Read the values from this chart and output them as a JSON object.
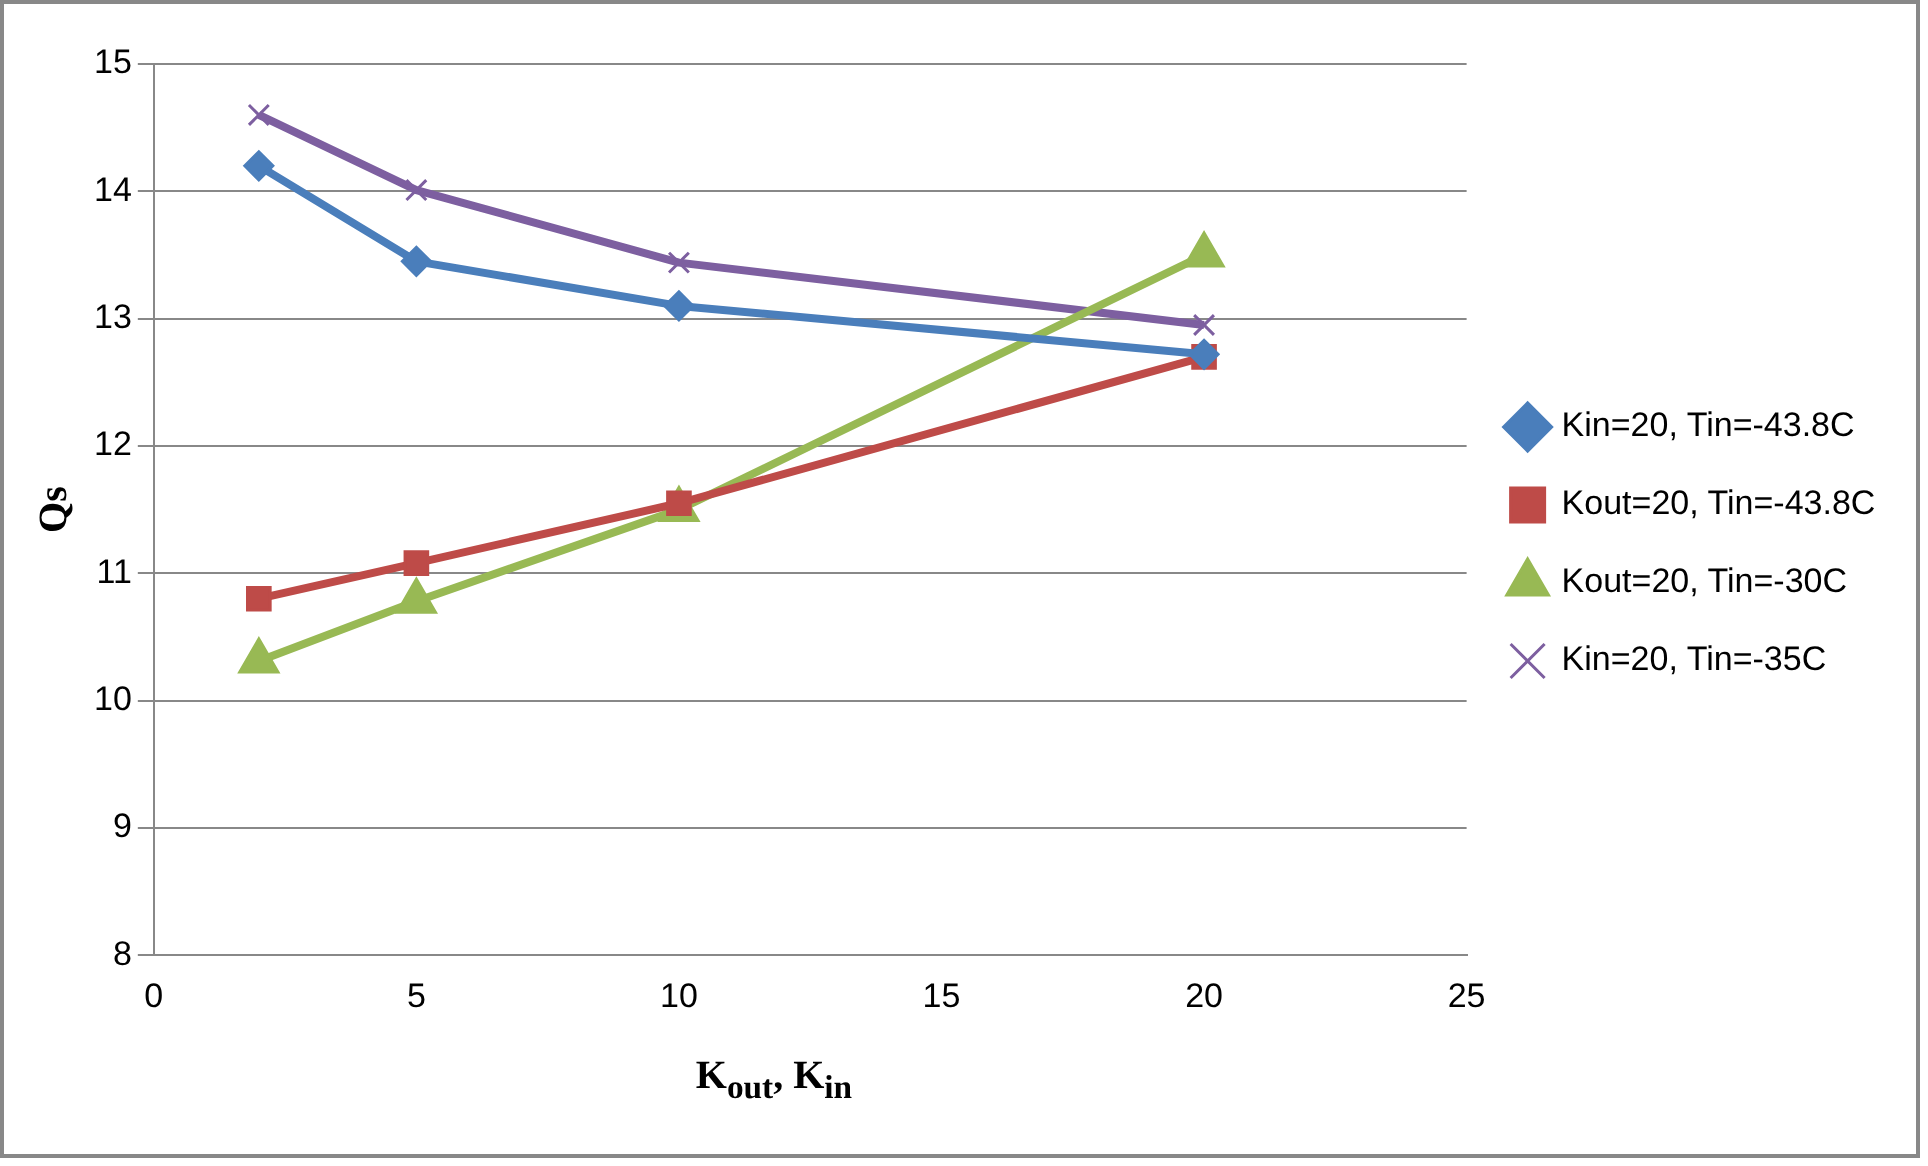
{
  "chart_data": {
    "type": "line",
    "xlabel": "K$_{out}$, K$_{in}$",
    "ylabel": "Qs",
    "x": [
      2,
      5,
      10,
      20
    ],
    "xlim": [
      0,
      25
    ],
    "xticks": [
      0,
      5,
      10,
      15,
      20,
      25
    ],
    "ylim": [
      8,
      15
    ],
    "yticks": [
      8,
      9,
      10,
      11,
      12,
      13,
      14,
      15
    ],
    "grid": "y",
    "legend": "right",
    "line_style": "solid",
    "series": [
      {
        "name": "Kin=20, Tin=-43.8C",
        "color": "#4a7ebb",
        "marker": "diamond",
        "values": [
          14.2,
          13.45,
          13.1,
          12.72
        ]
      },
      {
        "name": "Kout=20, Tin=-43.8C",
        "color": "#be4b48",
        "marker": "square",
        "values": [
          10.8,
          11.08,
          11.55,
          12.7
        ]
      },
      {
        "name": "Kout=20, Tin=-30C",
        "color": "#98b954",
        "marker": "triangle",
        "values": [
          10.31,
          10.78,
          11.5,
          13.5
        ]
      },
      {
        "name": "Kin=20, Tin=-35C",
        "color": "#7d5fa0",
        "marker": "cross",
        "values": [
          14.6,
          14.01,
          13.44,
          12.95
        ]
      }
    ]
  }
}
